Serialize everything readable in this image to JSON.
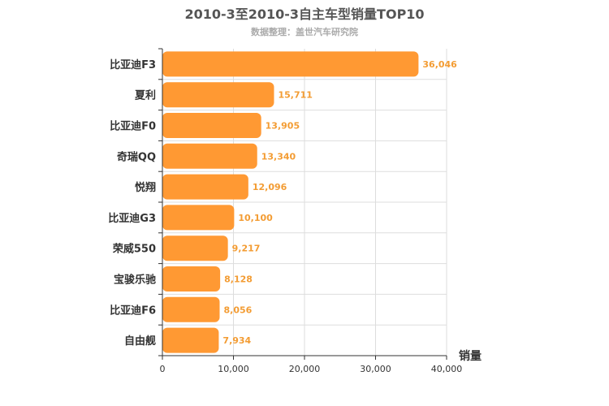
{
  "chart_data": {
    "type": "bar",
    "orientation": "horizontal",
    "title": "2010-3至2010-3自主车型销量TOP10",
    "subtitle": "数据整理：盖世汽车研究院",
    "categories": [
      "比亚迪F3",
      "夏利",
      "比亚迪F0",
      "奇瑞QQ",
      "悦翔",
      "比亚迪G3",
      "荣威550",
      "宝骏乐驰",
      "比亚迪F6",
      "自由舰"
    ],
    "values": [
      36046,
      15711,
      13905,
      13340,
      12096,
      10100,
      9217,
      8128,
      8056,
      7934
    ],
    "value_labels": [
      "36,046",
      "15,711",
      "13,905",
      "13,340",
      "12,096",
      "10,100",
      "9,217",
      "8,128",
      "8,056",
      "7,934"
    ],
    "xlabel": "销量",
    "xlim": [
      0,
      40000
    ],
    "ticks": [
      0,
      10000,
      20000,
      30000,
      40000
    ],
    "tick_labels": [
      "0",
      "10,000",
      "20,000",
      "30,000",
      "40,000"
    ],
    "grid": true,
    "colors": {
      "bar": "#ff9933",
      "value_label": "#f39c33",
      "grid": "#dddddd",
      "axis": "#333333"
    }
  }
}
